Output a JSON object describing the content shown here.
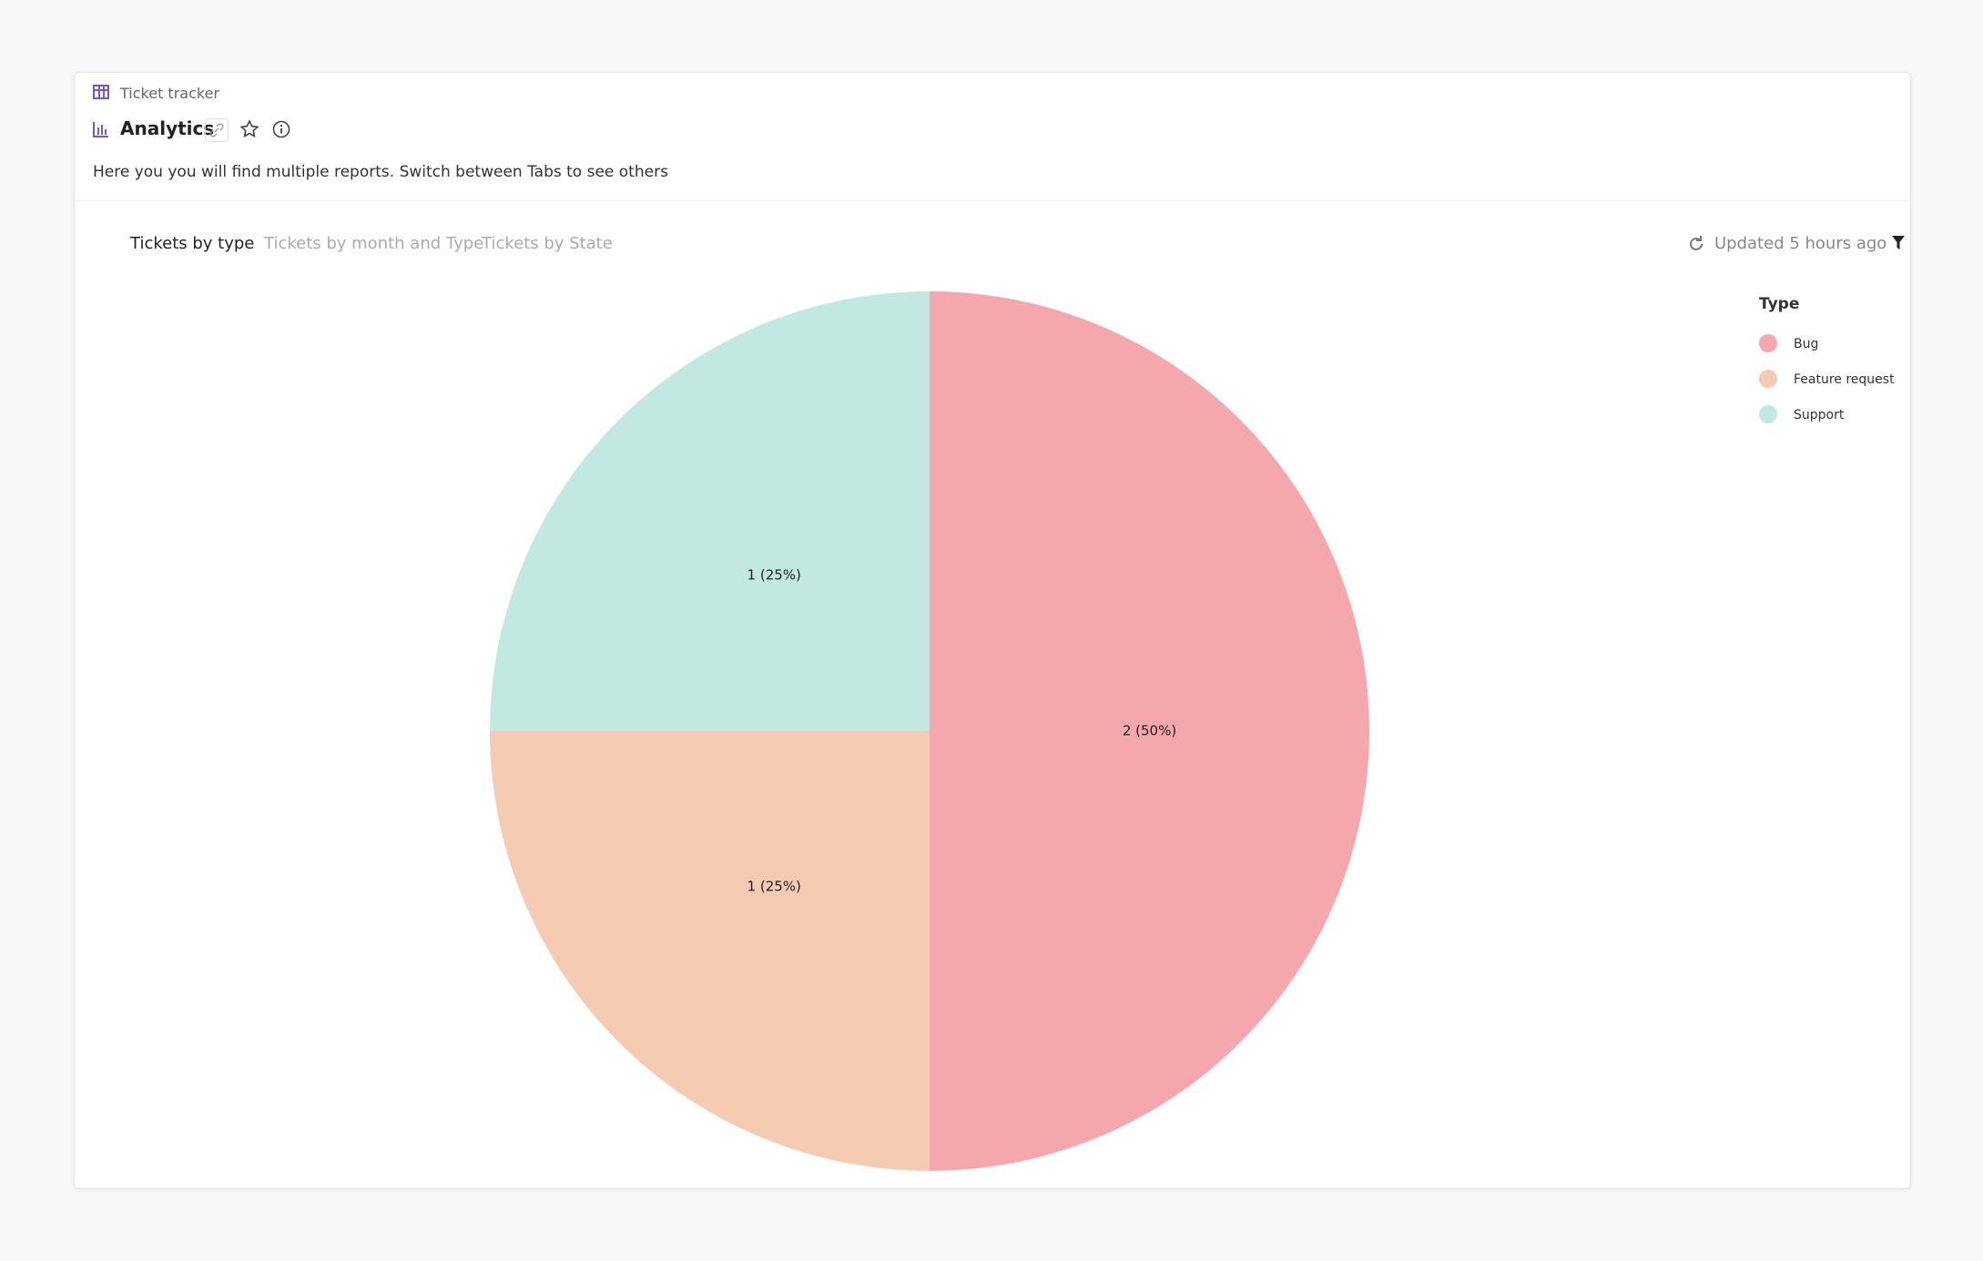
{
  "header": {
    "breadcrumb": "Ticket tracker",
    "title": "Analytics",
    "description": "Here you you will find multiple reports. Switch between Tabs to see others"
  },
  "tabs": [
    "Tickets by type",
    "Tickets by month and Type",
    "Tickets by State"
  ],
  "status": "Updated 5 hours ago",
  "chart_data": {
    "type": "pie",
    "legend_title": "Type",
    "categories": [
      "Bug",
      "Feature request",
      "Support"
    ],
    "values": [
      2,
      1,
      1
    ],
    "value_labels": [
      "2 (50%)",
      "1 (25%)",
      "1 (25%)"
    ],
    "colors": [
      "#f4a8ad",
      "#f5cbb2",
      "#c1e9e1"
    ],
    "legend_position": "top-right"
  }
}
